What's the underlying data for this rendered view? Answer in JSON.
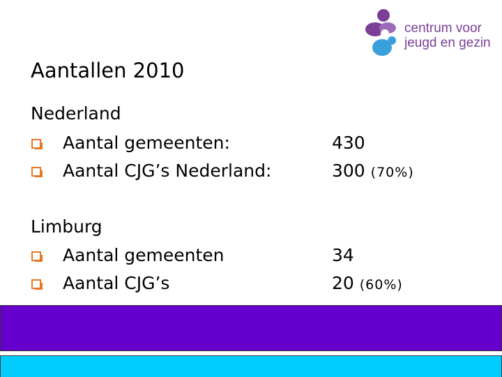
{
  "logo": {
    "line1": "centrum voor",
    "line2": "jeugd en gezin"
  },
  "title": "Aantallen 2010",
  "sections": [
    {
      "heading": "Nederland",
      "items": [
        {
          "label": "Aantal gemeenten:",
          "value": "430"
        },
        {
          "label": "Aantal CJG’s Nederland:",
          "value": "300",
          "note": "(70%)"
        }
      ]
    },
    {
      "heading": "Limburg",
      "items": [
        {
          "label": "Aantal gemeenten",
          "value": "34"
        },
        {
          "label": "Aantal CJG’s",
          "value": "20",
          "note": "(60%)"
        }
      ]
    }
  ]
}
